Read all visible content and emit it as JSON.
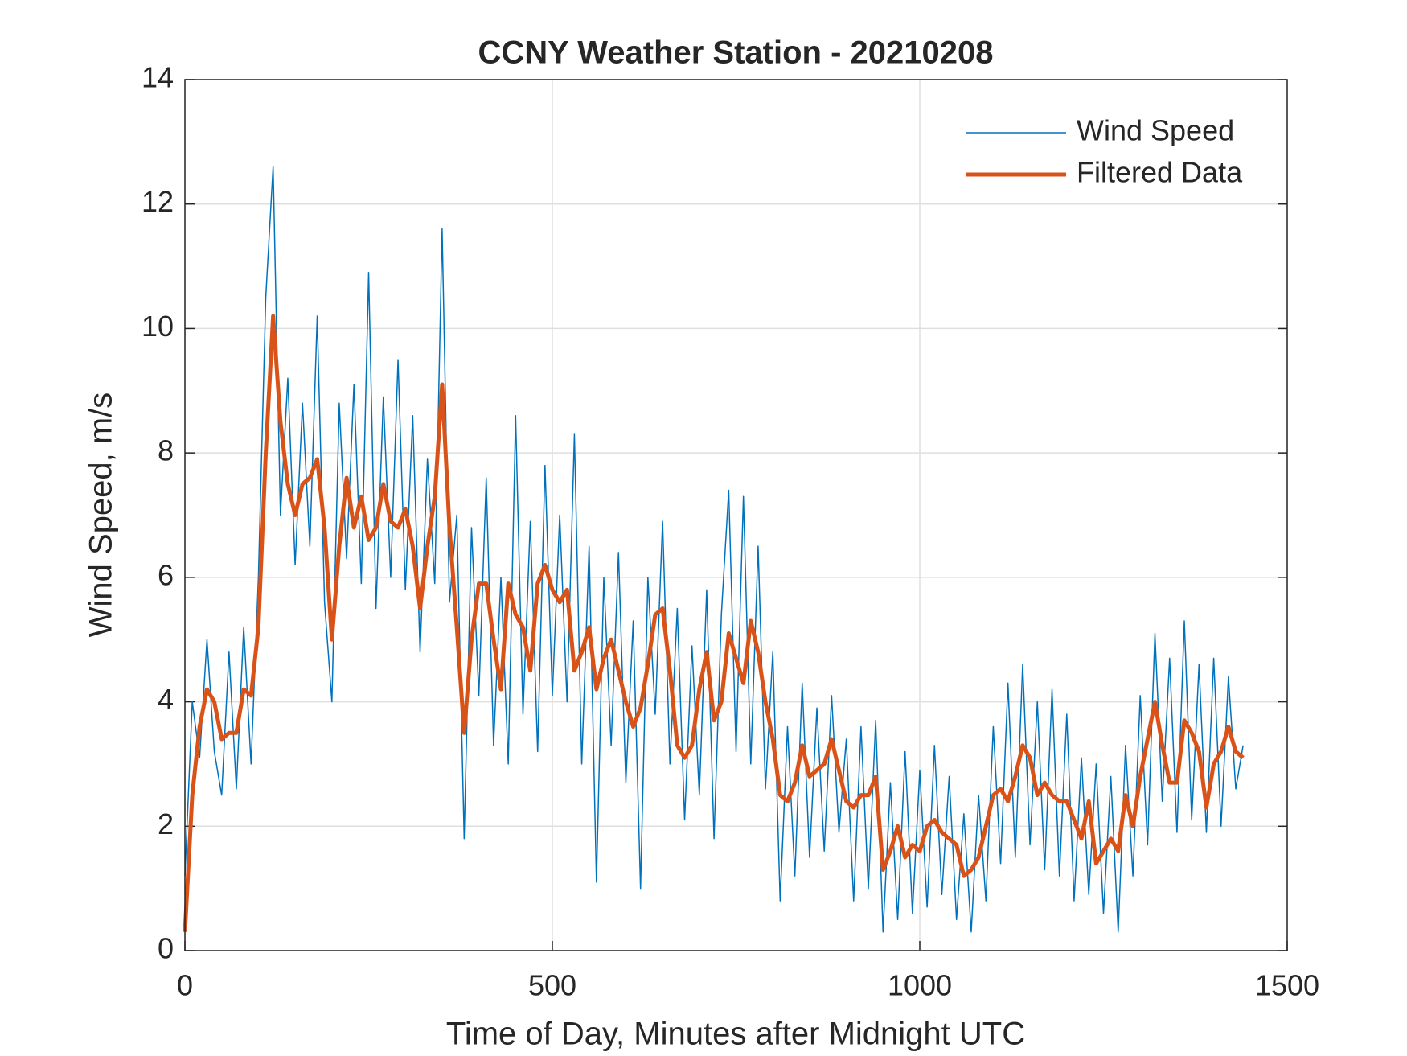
{
  "chart_data": {
    "type": "line",
    "title": "CCNY Weather Station - 20210208",
    "xlabel": "Time of Day, Minutes after Midnight UTC",
    "ylabel": "Wind Speed, m/s",
    "xlim": [
      0,
      1500
    ],
    "xticks": [
      0,
      500,
      1000,
      1500
    ],
    "ylim": [
      0,
      14
    ],
    "yticks": [
      0,
      2,
      4,
      6,
      8,
      10,
      12,
      14
    ],
    "grid": true,
    "legend": "upper right",
    "x": [
      0,
      10,
      20,
      30,
      40,
      50,
      60,
      70,
      80,
      90,
      100,
      110,
      120,
      130,
      140,
      150,
      160,
      170,
      180,
      190,
      200,
      210,
      220,
      230,
      240,
      250,
      260,
      270,
      280,
      290,
      300,
      310,
      320,
      330,
      340,
      350,
      360,
      370,
      380,
      390,
      400,
      410,
      420,
      430,
      440,
      450,
      460,
      470,
      480,
      490,
      500,
      510,
      520,
      530,
      540,
      550,
      560,
      570,
      580,
      590,
      600,
      610,
      620,
      630,
      640,
      650,
      660,
      670,
      680,
      690,
      700,
      710,
      720,
      730,
      740,
      750,
      760,
      770,
      780,
      790,
      800,
      810,
      820,
      830,
      840,
      850,
      860,
      870,
      880,
      890,
      900,
      910,
      920,
      930,
      940,
      950,
      960,
      970,
      980,
      990,
      1000,
      1010,
      1020,
      1030,
      1040,
      1050,
      1060,
      1070,
      1080,
      1090,
      1100,
      1110,
      1120,
      1130,
      1140,
      1150,
      1160,
      1170,
      1180,
      1190,
      1200,
      1210,
      1220,
      1230,
      1240,
      1250,
      1260,
      1270,
      1280,
      1290,
      1300,
      1310,
      1320,
      1330,
      1340,
      1350,
      1360,
      1370,
      1380,
      1390,
      1400,
      1410,
      1420,
      1430,
      1440
    ],
    "series": [
      {
        "name": "Wind Speed",
        "color": "#0072BD",
        "width": 1.5,
        "values": [
          1.2,
          4.0,
          3.1,
          5.0,
          3.2,
          2.5,
          4.8,
          2.6,
          5.2,
          3.0,
          6.0,
          10.5,
          12.6,
          7.0,
          9.2,
          6.2,
          8.8,
          6.5,
          10.2,
          5.6,
          4.0,
          8.8,
          6.3,
          9.1,
          5.9,
          10.9,
          5.5,
          8.9,
          6.0,
          9.5,
          5.8,
          8.6,
          4.8,
          7.9,
          5.9,
          11.6,
          5.6,
          7.0,
          1.8,
          6.8,
          4.1,
          7.6,
          3.3,
          6.0,
          3.0,
          8.6,
          3.8,
          6.9,
          3.2,
          7.8,
          4.1,
          7.0,
          4.0,
          8.3,
          3.0,
          6.5,
          1.1,
          6.0,
          3.3,
          6.4,
          2.7,
          5.3,
          1.0,
          6.0,
          3.8,
          6.9,
          3.0,
          5.5,
          2.1,
          4.9,
          2.5,
          5.8,
          1.8,
          5.4,
          7.4,
          3.2,
          7.3,
          3.0,
          6.5,
          2.6,
          4.8,
          0.8,
          3.6,
          1.2,
          4.3,
          1.5,
          3.9,
          1.6,
          4.1,
          1.9,
          3.4,
          0.8,
          3.6,
          1.0,
          3.7,
          0.3,
          2.7,
          0.5,
          3.2,
          0.6,
          2.9,
          0.7,
          3.3,
          0.9,
          2.8,
          0.5,
          2.2,
          0.3,
          2.5,
          0.8,
          3.6,
          1.4,
          4.3,
          1.5,
          4.6,
          1.7,
          4.0,
          1.3,
          4.2,
          1.2,
          3.8,
          0.8,
          3.1,
          0.9,
          3.0,
          0.6,
          2.8,
          0.3,
          3.3,
          1.2,
          4.1,
          1.7,
          5.1,
          2.4,
          4.7,
          1.9,
          5.3,
          2.1,
          4.6,
          1.9,
          4.7,
          2.0,
          4.4,
          2.6,
          3.3
        ]
      },
      {
        "name": "Filtered Data",
        "color": "#D95319",
        "width": 5,
        "values": [
          0.3,
          2.5,
          3.6,
          4.2,
          4.0,
          3.4,
          3.5,
          3.5,
          4.2,
          4.1,
          5.2,
          8.0,
          10.2,
          8.5,
          7.5,
          7.0,
          7.5,
          7.6,
          7.9,
          6.8,
          5.0,
          6.5,
          7.6,
          6.8,
          7.3,
          6.6,
          6.8,
          7.5,
          6.9,
          6.8,
          7.1,
          6.5,
          5.5,
          6.5,
          7.3,
          9.1,
          6.8,
          5.2,
          3.5,
          5.0,
          5.9,
          5.9,
          5.0,
          4.2,
          5.9,
          5.4,
          5.2,
          4.5,
          5.9,
          6.2,
          5.8,
          5.6,
          5.8,
          4.5,
          4.8,
          5.2,
          4.2,
          4.7,
          5.0,
          4.5,
          4.0,
          3.6,
          3.9,
          4.6,
          5.4,
          5.5,
          4.5,
          3.3,
          3.1,
          3.3,
          4.2,
          4.8,
          3.7,
          4.0,
          5.1,
          4.7,
          4.3,
          5.3,
          4.8,
          4.0,
          3.4,
          2.5,
          2.4,
          2.7,
          3.3,
          2.8,
          2.9,
          3.0,
          3.4,
          2.9,
          2.4,
          2.3,
          2.5,
          2.5,
          2.8,
          1.3,
          1.6,
          2.0,
          1.5,
          1.7,
          1.6,
          2.0,
          2.1,
          1.9,
          1.8,
          1.7,
          1.2,
          1.3,
          1.5,
          2.0,
          2.5,
          2.6,
          2.4,
          2.8,
          3.3,
          3.1,
          2.5,
          2.7,
          2.5,
          2.4,
          2.4,
          2.1,
          1.8,
          2.4,
          1.4,
          1.6,
          1.8,
          1.6,
          2.5,
          2.0,
          2.8,
          3.4,
          4.0,
          3.3,
          2.7,
          2.7,
          3.7,
          3.5,
          3.2,
          2.3,
          3.0,
          3.2,
          3.6,
          3.2,
          3.1
        ]
      }
    ]
  }
}
